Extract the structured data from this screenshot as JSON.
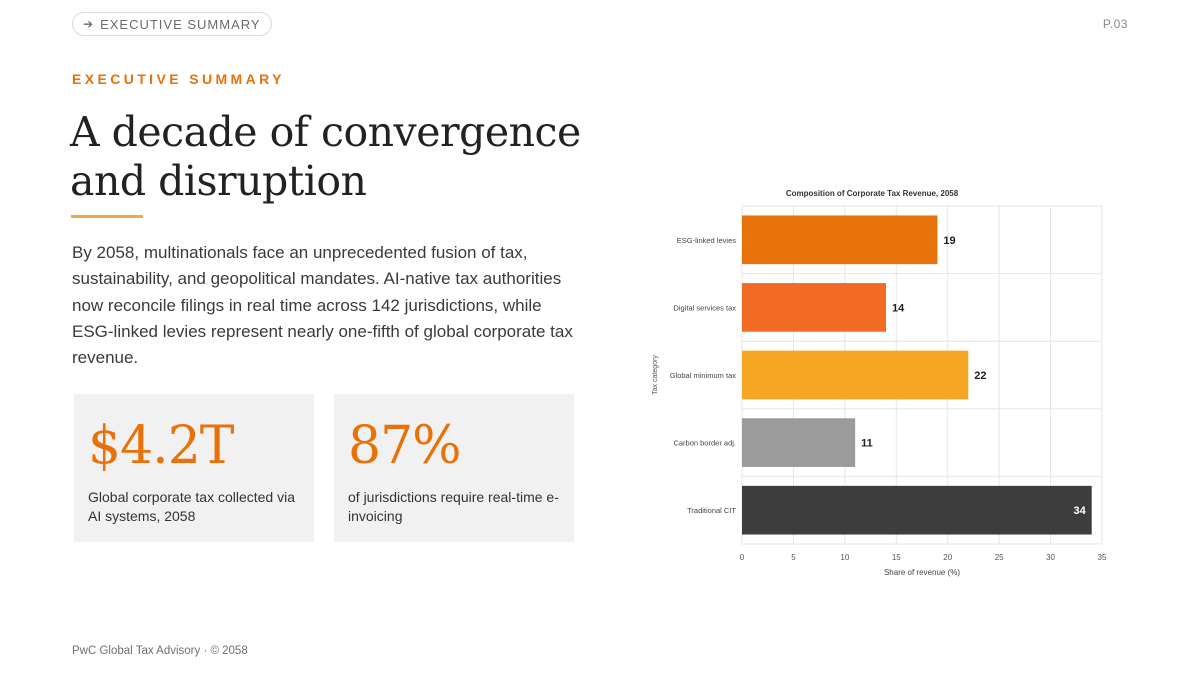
{
  "nav": {
    "label": "EXECUTIVE SUMMARY",
    "arrow_icon": "arrow-right-icon"
  },
  "page_number": "P.03",
  "eyebrow": "EXECUTIVE SUMMARY",
  "headline": "A decade of convergence and disruption",
  "intro": "By 2058, multinationals face an unprecedented fusion of tax, sustainability, and geopolitical mandates. AI-native tax authorities now reconcile filings in real time across 142 jurisdictions, while ESG-linked levies represent nearly one-fifth of global corporate tax revenue.",
  "stats": [
    {
      "value": "$4.2T",
      "label": "Global corporate tax collected via AI systems, 2058"
    },
    {
      "value": "87%",
      "label": "of jurisdictions require real-time e-invoicing"
    }
  ],
  "footer": "PwC Global Tax Advisory · © 2058",
  "colors": {
    "accent": "#e8710a",
    "underline": "#f2a93b"
  },
  "chart_data": {
    "type": "bar",
    "orientation": "horizontal",
    "title": "Composition of Corporate Tax Revenue, 2058",
    "xlabel": "Share of revenue (%)",
    "ylabel": "Tax category",
    "categories": [
      "ESG-linked levies",
      "Digital services tax",
      "Global minimum tax",
      "Carbon border adj.",
      "Traditional CIT"
    ],
    "values": [
      19,
      14,
      22,
      11,
      34
    ],
    "colors": [
      "#e8710a",
      "#f26b24",
      "#f5a623",
      "#9b9b9b",
      "#3d3d3d"
    ],
    "xlim": [
      0,
      35
    ],
    "xticks": [
      0,
      5,
      10,
      15,
      20,
      25,
      30,
      35
    ],
    "grid": true,
    "legend": "none"
  }
}
